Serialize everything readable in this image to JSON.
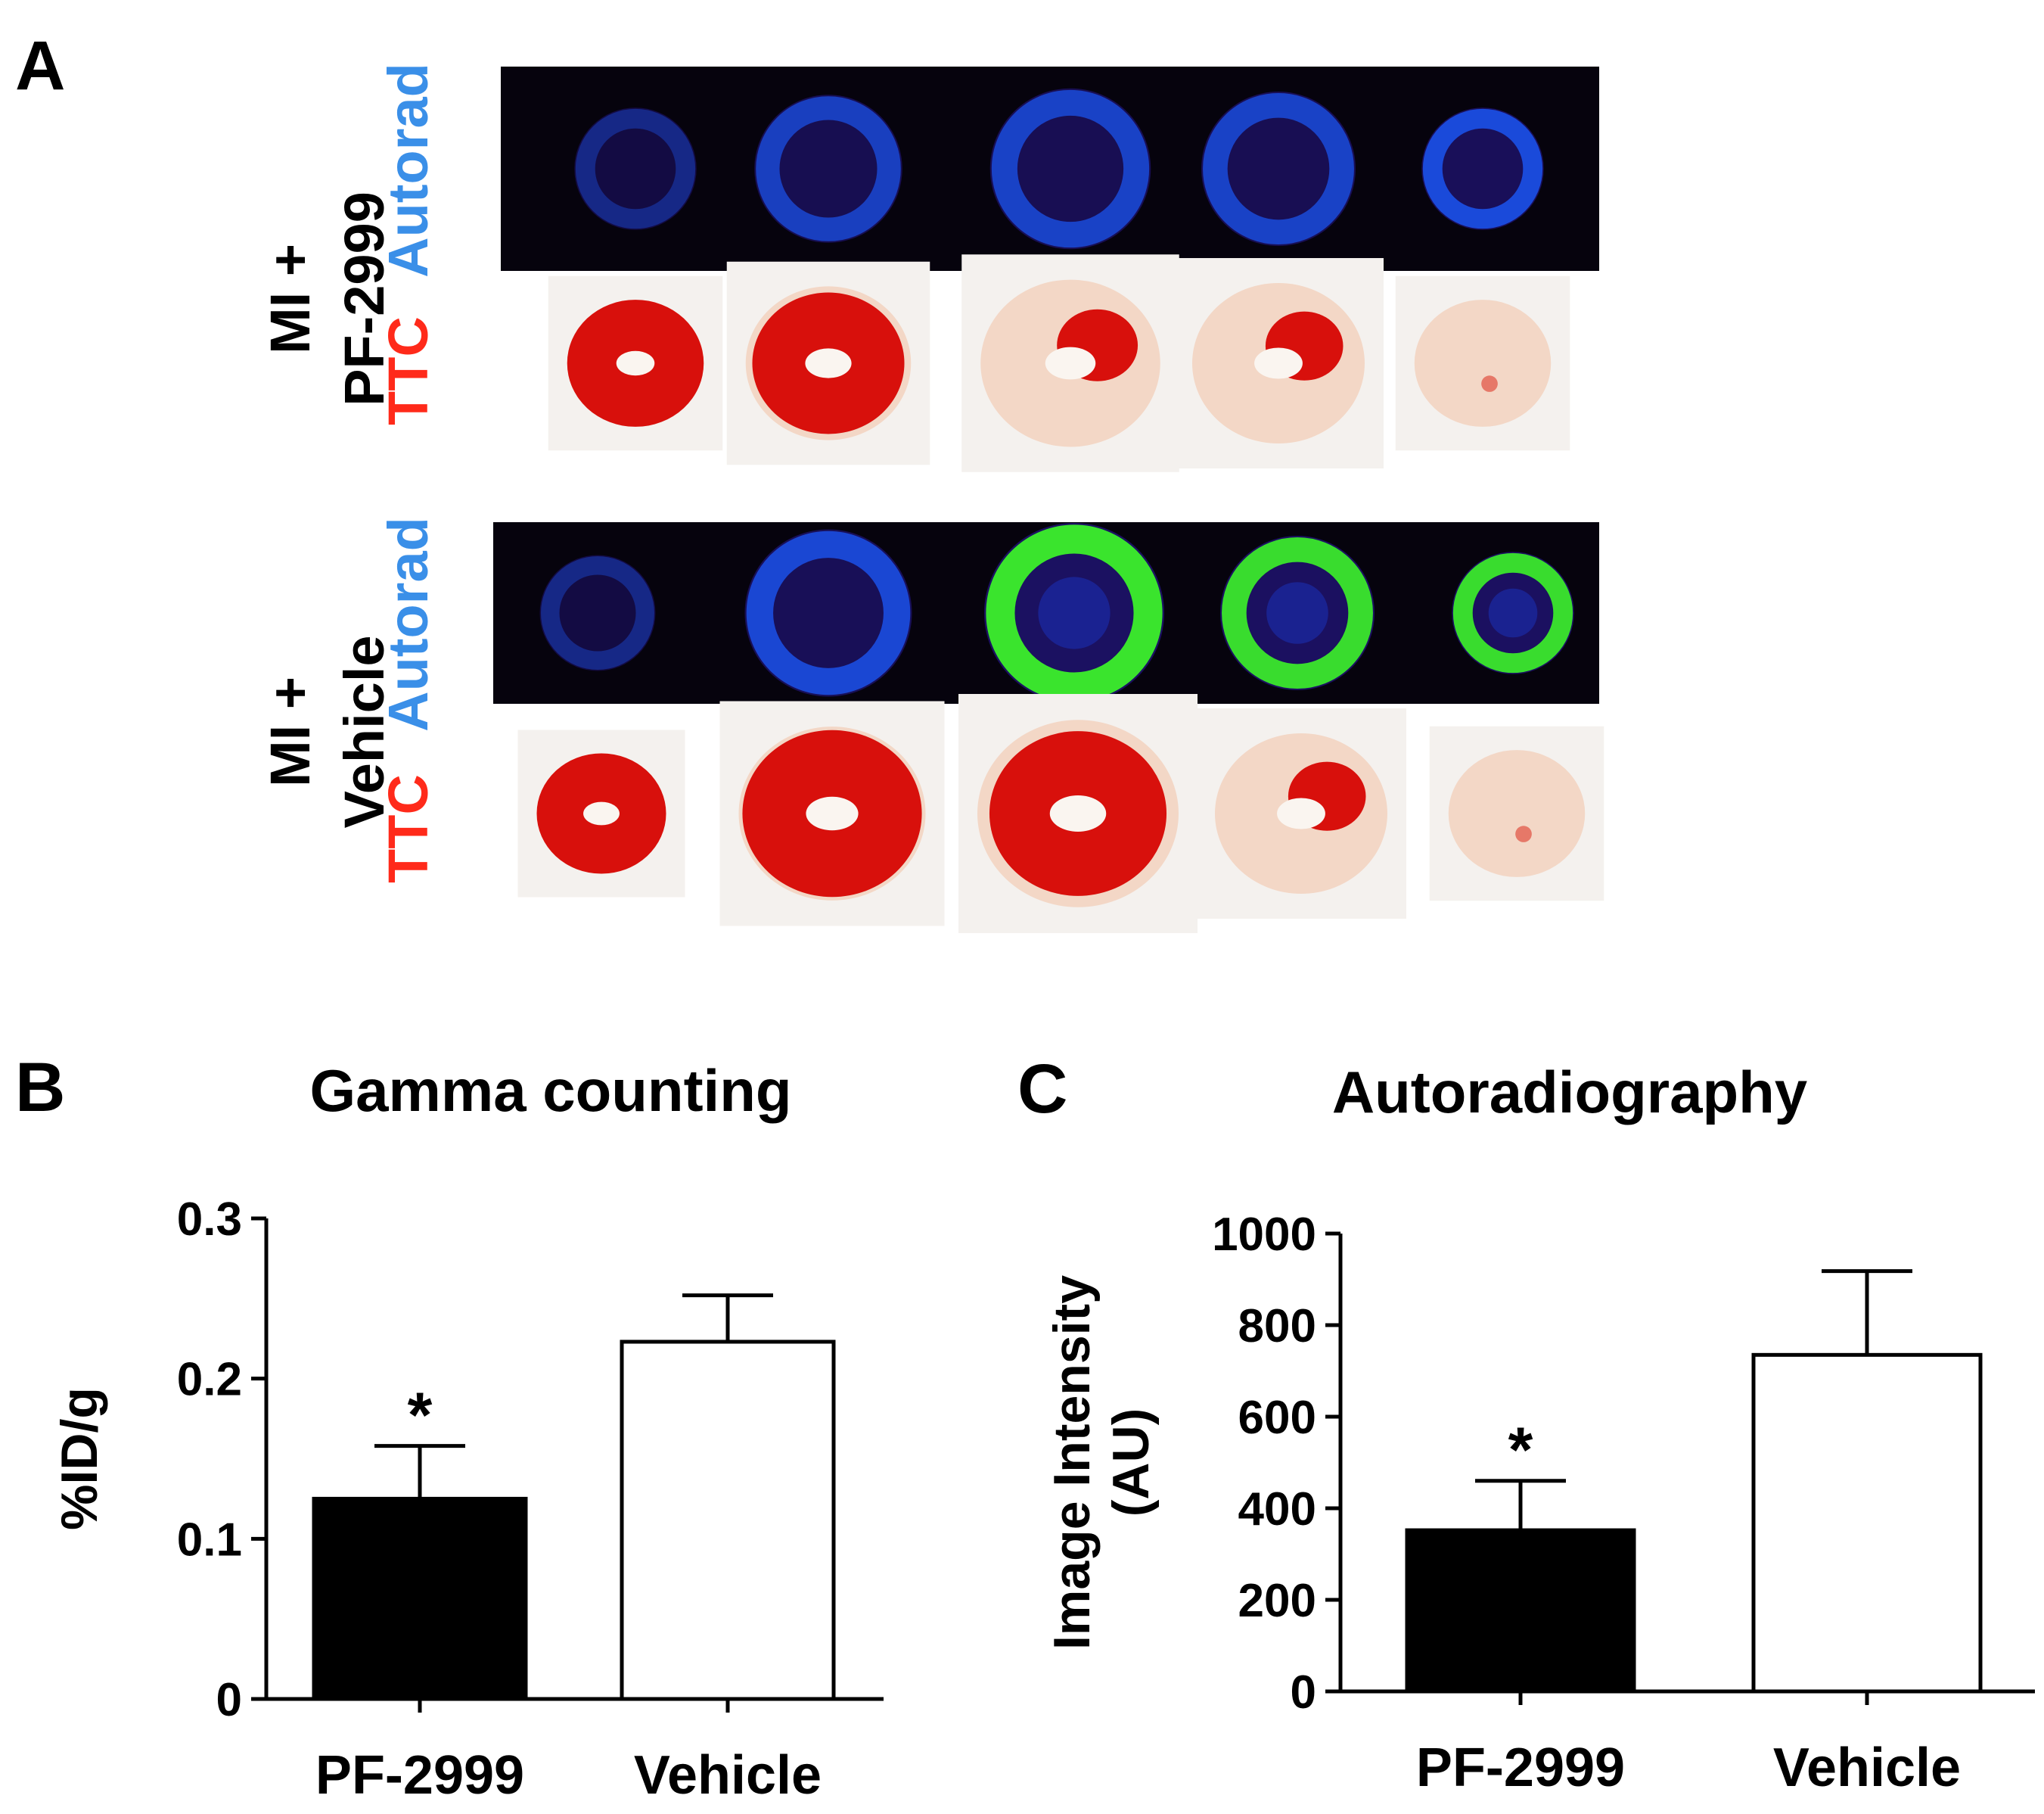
{
  "panel_a": {
    "label": "A",
    "groups": [
      {
        "line1": "MI +",
        "line2": "PF-2999",
        "ttc_label": "TTC",
        "autorad_label": "Autorad",
        "autorad_intensity": [
          0.15,
          0.55,
          0.6,
          0.6,
          0.75
        ],
        "ttc_red_fraction": [
          1.0,
          0.8,
          0.35,
          0.2,
          0.05
        ]
      },
      {
        "line1": "MI +",
        "line2": "Vehicle",
        "ttc_label": "TTC",
        "autorad_label": "Autorad",
        "autorad_intensity": [
          0.15,
          0.7,
          1.0,
          0.95,
          0.95
        ],
        "ttc_red_fraction": [
          1.0,
          0.9,
          0.7,
          0.4,
          0.05
        ]
      }
    ]
  },
  "chart_data": [
    {
      "panel": "B",
      "type": "bar",
      "title": "Gamma counting",
      "xlabel": "",
      "ylabel": "%ID/g",
      "categories": [
        "PF-2999",
        "Vehicle"
      ],
      "values": [
        0.125,
        0.223
      ],
      "errors": [
        0.033,
        0.029
      ],
      "bar_colors": [
        "#000000",
        "#ffffff"
      ],
      "significance": [
        "*",
        ""
      ],
      "ylim": [
        0,
        0.3
      ],
      "yticks": [
        0,
        0.1,
        0.2,
        0.3
      ],
      "ytick_labels": [
        "0",
        "0.1",
        "0.2",
        "0.3"
      ]
    },
    {
      "panel": "C",
      "type": "bar",
      "title": "Autoradiography",
      "xlabel": "",
      "ylabel": "Image Intensity",
      "ylabel2": "(AU)",
      "categories": [
        "PF-2999",
        "Vehicle"
      ],
      "values": [
        352,
        735
      ],
      "errors": [
        108,
        183
      ],
      "bar_colors": [
        "#000000",
        "#ffffff"
      ],
      "significance": [
        "*",
        ""
      ],
      "ylim": [
        0,
        1000
      ],
      "yticks": [
        0,
        200,
        400,
        600,
        800,
        1000
      ],
      "ytick_labels": [
        "0",
        "200",
        "400",
        "600",
        "800",
        "1000"
      ]
    }
  ],
  "colors": {
    "ttc_label": "#ff2a1a",
    "autorad_label": "#3a8fe8",
    "autorad_bg": "#06030d",
    "tissue_red": "#d8100c",
    "tissue_pale": "#f3d7c6"
  }
}
